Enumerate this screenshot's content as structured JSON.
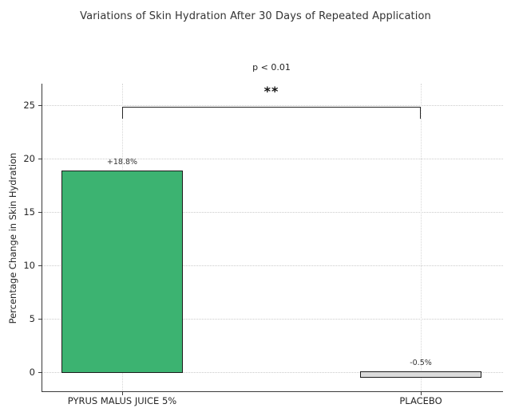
{
  "chart_data": {
    "type": "bar",
    "title": "Variations of Skin Hydration After 30 Days of Repeated Application",
    "ylabel": "Percentage Change in Skin Hydration",
    "xlabel": "",
    "categories": [
      "PYRUS MALUS JUICE 5%",
      "PLACEBO"
    ],
    "values": [
      18.8,
      -0.5
    ],
    "bar_labels": [
      "+18.8%",
      "-0.5%"
    ],
    "bar_colors": [
      "#3cb371",
      "#dcdcdc"
    ],
    "bar_edge_color": "#1c1c1c",
    "yticks": [
      0,
      5,
      10,
      15,
      20,
      25
    ],
    "ylim": [
      -1.8,
      27
    ],
    "grid": "dotted horizontal at yticks, dotted vertical at category centers",
    "legend": "none",
    "significance": {
      "p_label": "p < 0.01",
      "stars": "**",
      "compares": [
        0,
        1
      ],
      "bracket_y_value": 24.85,
      "bracket_tick_drop": 1.1
    }
  },
  "colors": {
    "background": "#ffffff",
    "bar_positive": "#3cb371",
    "bar_placebo": "#dcdcdc",
    "bar_edge": "#1c1c1c",
    "grid": "#cbcbcb",
    "spine": "#3a3a3a",
    "text": "#262626"
  }
}
